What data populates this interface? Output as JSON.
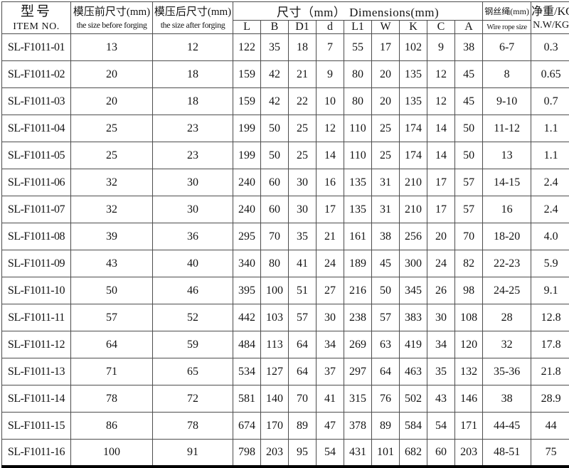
{
  "table": {
    "header": {
      "item_no": {
        "zh": "型号",
        "en": "ITEM NO."
      },
      "before": {
        "zh": "模压前尺寸(mm)",
        "en": "the size before forging"
      },
      "after": {
        "zh": "模压后尺寸(mm)",
        "en": "the size after forging"
      },
      "dimensions_span": "尺寸（mm） Dimensions(mm)",
      "dim_cols": [
        "L",
        "B",
        "D1",
        "d",
        "L1",
        "W",
        "K",
        "C",
        "A"
      ],
      "wire_rope": {
        "zh": "钢丝绳(mm)",
        "en": "Wire rope size"
      },
      "net_weight": {
        "zh": "净重/KG",
        "en": "N.W/KG"
      }
    },
    "rows": [
      [
        "SL-F1011-01",
        "13",
        "12",
        "122",
        "35",
        "18",
        "7",
        "55",
        "17",
        "102",
        "9",
        "38",
        "6-7",
        "0.3"
      ],
      [
        "SL-F1011-02",
        "20",
        "18",
        "159",
        "42",
        "21",
        "9",
        "80",
        "20",
        "135",
        "12",
        "45",
        "8",
        "0.65"
      ],
      [
        "SL-F1011-03",
        "20",
        "18",
        "159",
        "42",
        "22",
        "10",
        "80",
        "20",
        "135",
        "12",
        "45",
        "9-10",
        "0.7"
      ],
      [
        "SL-F1011-04",
        "25",
        "23",
        "199",
        "50",
        "25",
        "12",
        "110",
        "25",
        "174",
        "14",
        "50",
        "11-12",
        "1.1"
      ],
      [
        "SL-F1011-05",
        "25",
        "23",
        "199",
        "50",
        "25",
        "14",
        "110",
        "25",
        "174",
        "14",
        "50",
        "13",
        "1.1"
      ],
      [
        "SL-F1011-06",
        "32",
        "30",
        "240",
        "60",
        "30",
        "16",
        "135",
        "31",
        "210",
        "17",
        "57",
        "14-15",
        "2.4"
      ],
      [
        "SL-F1011-07",
        "32",
        "30",
        "240",
        "60",
        "30",
        "17",
        "135",
        "31",
        "210",
        "17",
        "57",
        "16",
        "2.4"
      ],
      [
        "SL-F1011-08",
        "39",
        "36",
        "295",
        "70",
        "35",
        "21",
        "161",
        "38",
        "256",
        "20",
        "70",
        "18-20",
        "4.0"
      ],
      [
        "SL-F1011-09",
        "43",
        "40",
        "340",
        "80",
        "41",
        "24",
        "189",
        "45",
        "300",
        "24",
        "82",
        "22-23",
        "5.9"
      ],
      [
        "SL-F1011-10",
        "50",
        "46",
        "395",
        "100",
        "51",
        "27",
        "216",
        "50",
        "345",
        "26",
        "98",
        "24-25",
        "9.1"
      ],
      [
        "SL-F1011-11",
        "57",
        "52",
        "442",
        "103",
        "57",
        "30",
        "238",
        "57",
        "383",
        "30",
        "108",
        "28",
        "12.8"
      ],
      [
        "SL-F1011-12",
        "64",
        "59",
        "484",
        "113",
        "64",
        "34",
        "269",
        "63",
        "419",
        "34",
        "120",
        "32",
        "17.8"
      ],
      [
        "SL-F1011-13",
        "71",
        "65",
        "534",
        "127",
        "64",
        "37",
        "297",
        "64",
        "463",
        "35",
        "132",
        "35-36",
        "21.8"
      ],
      [
        "SL-F1011-14",
        "78",
        "72",
        "581",
        "140",
        "70",
        "41",
        "315",
        "76",
        "502",
        "43",
        "146",
        "38",
        "28.9"
      ],
      [
        "SL-F1011-15",
        "86",
        "78",
        "674",
        "170",
        "89",
        "47",
        "378",
        "89",
        "584",
        "54",
        "171",
        "44-45",
        "44"
      ],
      [
        "SL-F1011-16",
        "100",
        "91",
        "798",
        "203",
        "95",
        "54",
        "431",
        "101",
        "682",
        "60",
        "203",
        "48-51",
        "75"
      ]
    ]
  }
}
